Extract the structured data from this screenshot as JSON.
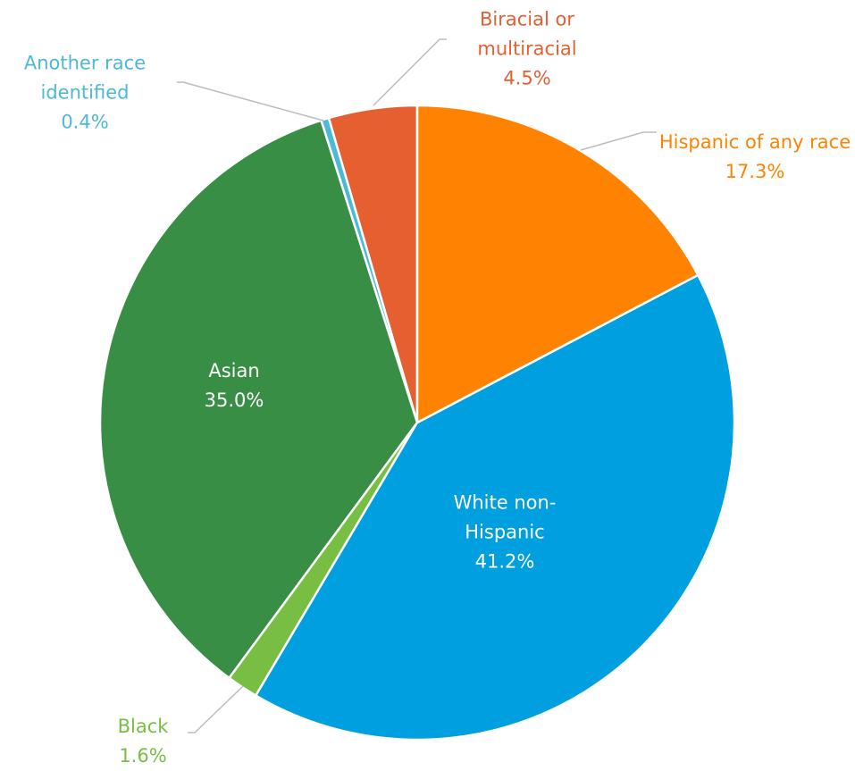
{
  "chart_data": {
    "type": "pie",
    "categories": [
      "Hispanic of any race",
      "White non-Hispanic",
      "Black",
      "Asian",
      "Another race identified",
      "Biracial or multiracial"
    ],
    "values": [
      17.3,
      41.2,
      1.6,
      35.0,
      0.4,
      4.5
    ],
    "value_labels": [
      "17.3%",
      "41.2%",
      "1.6%",
      "35.0%",
      "0.4%",
      "4.5%"
    ],
    "colors": [
      "#ff8200",
      "#009fdf",
      "#78be43",
      "#388e44",
      "#4cb9d6",
      "#e55f31"
    ]
  }
}
